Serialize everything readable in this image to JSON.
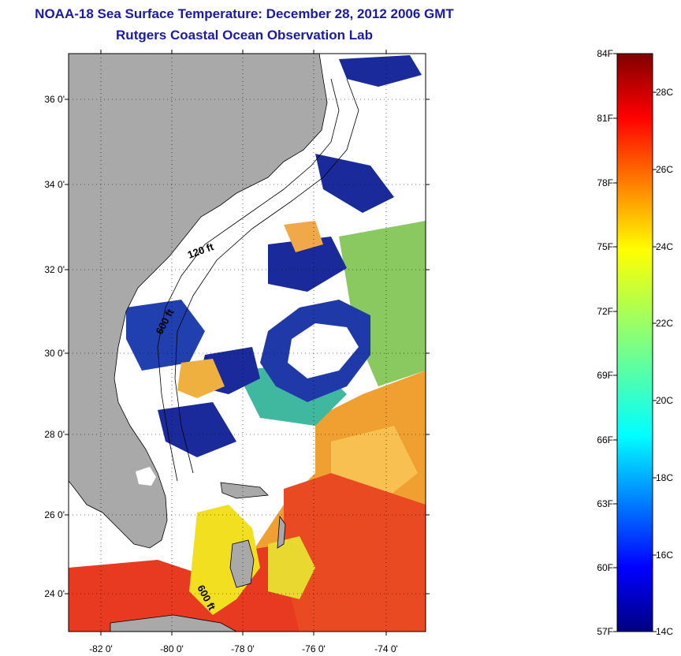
{
  "header": {
    "title_line1": "NOAA-18 Sea Surface Temperature:  December 28, 2012 2006 GMT",
    "title_line2": "Rutgers Coastal Ocean Observation Lab"
  },
  "map": {
    "lat_labels": [
      "36 0'",
      "34 0'",
      "32 0'",
      "30 0'",
      "28 0'",
      "26 0'",
      "24 0'"
    ],
    "lon_labels": [
      "-82 0'",
      "-80 0'",
      "-78 0'",
      "-76 0'",
      "-74 0'"
    ],
    "contour_labels": [
      "120 ft",
      "600 ft",
      "600 ft"
    ],
    "colors": {
      "land": "#a9a9a9",
      "cloud": "#ffffff",
      "deep_blue": "#1a2a9a",
      "orange": "#f0a030",
      "red": "#e83a20"
    }
  },
  "colorbar": {
    "fahrenheit_labels": [
      "84F",
      "81F",
      "78F",
      "75F",
      "72F",
      "69F",
      "66F",
      "63F",
      "60F",
      "57F"
    ],
    "celsius_labels": [
      "28C",
      "26C",
      "24C",
      "22C",
      "20C",
      "18C",
      "16C",
      "14C"
    ],
    "range_f": [
      57,
      84
    ],
    "range_c": [
      14,
      29
    ]
  }
}
